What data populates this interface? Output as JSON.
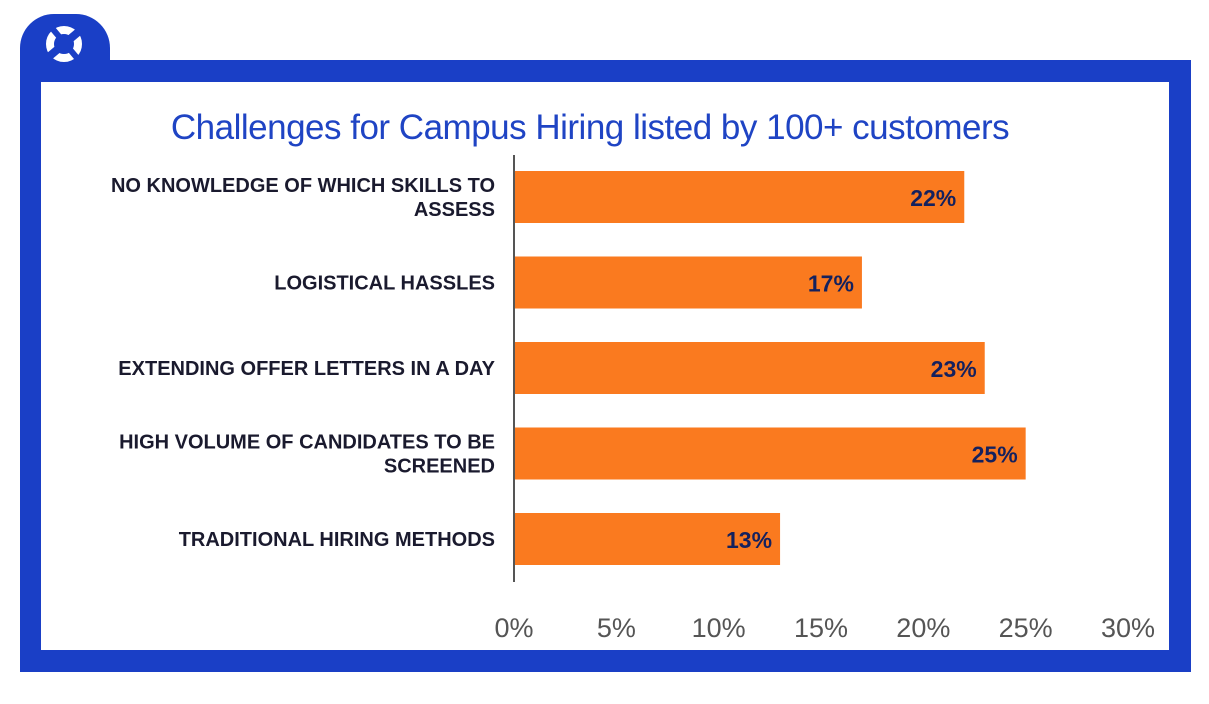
{
  "chart_data": {
    "type": "bar",
    "orientation": "horizontal",
    "title": "Challenges for Campus Hiring listed by 100+ customers",
    "categories": [
      "NO KNOWLEDGE OF WHICH SKILLS TO ASSESS",
      "LOGISTICAL HASSLES",
      "EXTENDING OFFER LETTERS IN A DAY",
      "HIGH VOLUME OF CANDIDATES TO BE SCREENED",
      "TRADITIONAL HIRING METHODS"
    ],
    "category_lines": [
      [
        "NO KNOWLEDGE OF WHICH SKILLS TO",
        "ASSESS"
      ],
      [
        "LOGISTICAL HASSLES"
      ],
      [
        "EXTENDING OFFER LETTERS IN A DAY"
      ],
      [
        "HIGH VOLUME OF CANDIDATES TO BE",
        "SCREENED"
      ],
      [
        "TRADITIONAL HIRING METHODS"
      ]
    ],
    "values": [
      22,
      17,
      23,
      25,
      13
    ],
    "value_labels": [
      "22%",
      "17%",
      "23%",
      "25%",
      "13%"
    ],
    "xlim": [
      0,
      30
    ],
    "xticks": [
      0,
      5,
      10,
      15,
      20,
      25,
      30
    ],
    "xtick_labels": [
      "0%",
      "5%",
      "10%",
      "15%",
      "20%",
      "25%",
      "30%"
    ],
    "xlabel": "",
    "ylabel": "",
    "grid": false,
    "colors": {
      "bar": "#fa7a1f",
      "frame": "#1a3fc6",
      "title": "#1f44c4",
      "value_text": "#14215e"
    }
  },
  "logo": {
    "icon": "ring-logo-icon"
  }
}
